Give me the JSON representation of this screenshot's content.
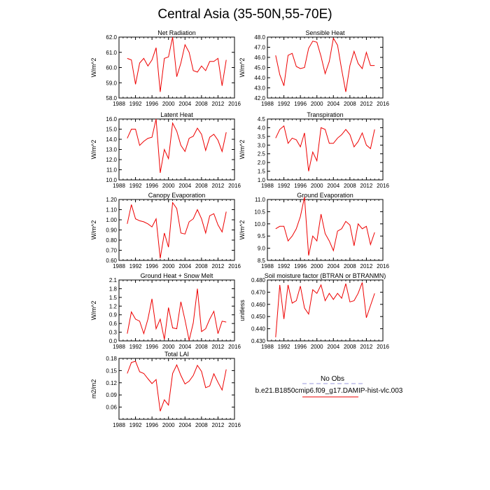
{
  "figure": {
    "title": "Central Asia (35-50N,55-70E)"
  },
  "legend": {
    "obs_label": "No Obs",
    "model_label": "b.e21.B1850cmip6.f09_g17.DAMIP-hist-vlc.003",
    "obs_color": "#9999dd",
    "model_color": "#ee0000"
  },
  "chart_data": [
    {
      "type": "line",
      "title": "Net Radiation",
      "ylabel": "W/m^2",
      "xlim": [
        1988,
        2016
      ],
      "ylim": [
        58.0,
        62.0
      ],
      "xticks": [
        1988,
        1992,
        1996,
        2000,
        2004,
        2008,
        2012,
        2016
      ],
      "yticks": [
        58.0,
        59.0,
        60.0,
        61.0,
        62.0
      ],
      "ytick_labels": [
        "58.0",
        "59.0",
        "60.0",
        "61.0",
        "62.0"
      ],
      "x": [
        1990,
        1991,
        1992,
        1993,
        1994,
        1995,
        1996,
        1997,
        1998,
        1999,
        2000,
        2001,
        2002,
        2003,
        2004,
        2005,
        2006,
        2007,
        2008,
        2009,
        2010,
        2011,
        2012,
        2013,
        2014
      ],
      "series": [
        {
          "values": [
            60.6,
            60.5,
            58.9,
            60.3,
            60.6,
            60.1,
            60.5,
            61.3,
            58.4,
            60.6,
            60.7,
            62.0,
            59.4,
            60.3,
            61.5,
            61.0,
            59.8,
            59.7,
            60.1,
            59.8,
            60.4,
            60.4,
            60.6,
            58.8,
            60.5
          ]
        }
      ]
    },
    {
      "type": "line",
      "title": "Sensible Heat",
      "ylabel": "W/m^2",
      "xlim": [
        1988,
        2016
      ],
      "ylim": [
        42.0,
        48.0
      ],
      "xticks": [
        1988,
        1992,
        1996,
        2000,
        2004,
        2008,
        2012,
        2016
      ],
      "yticks": [
        42.0,
        43.0,
        44.0,
        45.0,
        46.0,
        47.0,
        48.0
      ],
      "ytick_labels": [
        "42.0",
        "43.0",
        "44.0",
        "45.0",
        "46.0",
        "47.0",
        "48.0"
      ],
      "x": [
        1990,
        1991,
        1992,
        1993,
        1994,
        1995,
        1996,
        1997,
        1998,
        1999,
        2000,
        2001,
        2002,
        2003,
        2004,
        2005,
        2006,
        2007,
        2008,
        2009,
        2010,
        2011,
        2012,
        2013,
        2014
      ],
      "series": [
        {
          "values": [
            46.2,
            44.3,
            43.2,
            46.2,
            46.4,
            45.1,
            44.9,
            45.0,
            46.9,
            47.6,
            47.5,
            46.1,
            44.4,
            45.6,
            47.9,
            47.2,
            44.8,
            42.6,
            45.2,
            46.6,
            45.4,
            44.9,
            46.5,
            45.2,
            45.2
          ]
        }
      ]
    },
    {
      "type": "line",
      "title": "Latent Heat",
      "ylabel": "W/m^2",
      "xlim": [
        1988,
        2016
      ],
      "ylim": [
        10.0,
        16.0
      ],
      "xticks": [
        1988,
        1992,
        1996,
        2000,
        2004,
        2008,
        2012,
        2016
      ],
      "yticks": [
        10.0,
        11.0,
        12.0,
        13.0,
        14.0,
        15.0,
        16.0
      ],
      "ytick_labels": [
        "10.0",
        "11.0",
        "12.0",
        "13.0",
        "14.0",
        "15.0",
        "16.0"
      ],
      "x": [
        1990,
        1991,
        1992,
        1993,
        1994,
        1995,
        1996,
        1997,
        1998,
        1999,
        2000,
        2001,
        2002,
        2003,
        2004,
        2005,
        2006,
        2007,
        2008,
        2009,
        2010,
        2011,
        2012,
        2013,
        2014
      ],
      "series": [
        {
          "values": [
            14.1,
            15.0,
            15.0,
            13.4,
            13.8,
            14.1,
            14.2,
            16.0,
            10.7,
            13.0,
            12.1,
            15.6,
            14.8,
            13.4,
            12.8,
            14.1,
            14.3,
            15.1,
            14.5,
            12.9,
            14.2,
            14.5,
            13.9,
            12.8,
            14.7
          ]
        }
      ]
    },
    {
      "type": "line",
      "title": "Transpiration",
      "ylabel": "W/m^2",
      "xlim": [
        1988,
        2016
      ],
      "ylim": [
        1.0,
        4.5
      ],
      "xticks": [
        1988,
        1992,
        1996,
        2000,
        2004,
        2008,
        2012,
        2016
      ],
      "yticks": [
        1.0,
        1.5,
        2.0,
        2.5,
        3.0,
        3.5,
        4.0,
        4.5
      ],
      "ytick_labels": [
        "1.0",
        "1.5",
        "2.0",
        "2.5",
        "3.0",
        "3.5",
        "4.0",
        "4.5"
      ],
      "x": [
        1990,
        1991,
        1992,
        1993,
        1994,
        1995,
        1996,
        1997,
        1998,
        1999,
        2000,
        2001,
        2002,
        2003,
        2004,
        2005,
        2006,
        2007,
        2008,
        2009,
        2010,
        2011,
        2012,
        2013,
        2014
      ],
      "series": [
        {
          "values": [
            3.4,
            3.9,
            4.1,
            3.1,
            3.4,
            3.3,
            2.9,
            3.7,
            1.5,
            2.6,
            2.1,
            4.0,
            3.9,
            3.1,
            3.1,
            3.4,
            3.6,
            3.9,
            3.6,
            2.9,
            3.2,
            3.7,
            3.0,
            2.8,
            3.9
          ]
        }
      ]
    },
    {
      "type": "line",
      "title": "Canopy Evaporation",
      "ylabel": "W/m^2",
      "xlim": [
        1988,
        2016
      ],
      "ylim": [
        0.6,
        1.2
      ],
      "xticks": [
        1988,
        1992,
        1996,
        2000,
        2004,
        2008,
        2012,
        2016
      ],
      "yticks": [
        0.6,
        0.7,
        0.8,
        0.9,
        1.0,
        1.1,
        1.2
      ],
      "ytick_labels": [
        "0.60",
        "0.70",
        "0.80",
        "0.90",
        "1.00",
        "1.10",
        "1.20"
      ],
      "x": [
        1990,
        1991,
        1992,
        1993,
        1994,
        1995,
        1996,
        1997,
        1998,
        1999,
        2000,
        2001,
        2002,
        2003,
        2004,
        2005,
        2006,
        2007,
        2008,
        2009,
        2010,
        2011,
        2012,
        2013,
        2014
      ],
      "series": [
        {
          "values": [
            0.96,
            1.15,
            1.01,
            0.99,
            0.98,
            0.96,
            0.93,
            1.01,
            0.62,
            0.87,
            0.73,
            1.17,
            1.11,
            0.87,
            0.86,
            0.98,
            1.01,
            1.1,
            1.01,
            0.87,
            1.04,
            1.06,
            0.95,
            0.88,
            1.08
          ]
        }
      ]
    },
    {
      "type": "line",
      "title": "Ground Evaporation",
      "ylabel": "W/m^2",
      "xlim": [
        1988,
        2016
      ],
      "ylim": [
        8.5,
        11.0
      ],
      "xticks": [
        1988,
        1992,
        1996,
        2000,
        2004,
        2008,
        2012,
        2016
      ],
      "yticks": [
        8.5,
        9.0,
        9.5,
        10.0,
        10.5,
        11.0
      ],
      "ytick_labels": [
        "8.5",
        "9.0",
        "9.5",
        "10.0",
        "10.5",
        "11.0"
      ],
      "x": [
        1990,
        1991,
        1992,
        1993,
        1994,
        1995,
        1996,
        1997,
        1998,
        1999,
        2000,
        2001,
        2002,
        2003,
        2004,
        2005,
        2006,
        2007,
        2008,
        2009,
        2010,
        2011,
        2012,
        2013,
        2014
      ],
      "series": [
        {
          "values": [
            9.8,
            9.9,
            9.9,
            9.3,
            9.5,
            9.8,
            10.3,
            11.1,
            8.7,
            9.5,
            9.3,
            10.4,
            9.6,
            9.3,
            8.9,
            9.7,
            9.8,
            10.1,
            9.95,
            9.1,
            10.0,
            9.8,
            9.9,
            9.15,
            9.65
          ]
        }
      ]
    },
    {
      "type": "line",
      "title": "Ground Heat + Snow Melt",
      "ylabel": "W/m^2",
      "xlim": [
        1988,
        2016
      ],
      "ylim": [
        0.0,
        2.1
      ],
      "xticks": [
        1988,
        1992,
        1996,
        2000,
        2004,
        2008,
        2012,
        2016
      ],
      "yticks": [
        0.0,
        0.3,
        0.6,
        0.9,
        1.2,
        1.5,
        1.8,
        2.1
      ],
      "ytick_labels": [
        "0.0",
        "0.3",
        "0.6",
        "0.9",
        "1.2",
        "1.5",
        "1.8",
        "2.1"
      ],
      "x": [
        1990,
        1991,
        1992,
        1993,
        1994,
        1995,
        1996,
        1997,
        1998,
        1999,
        2000,
        2001,
        2002,
        2003,
        2004,
        2005,
        2006,
        2007,
        2008,
        2009,
        2010,
        2011,
        2012,
        2013,
        2014
      ],
      "series": [
        {
          "values": [
            0.25,
            1.0,
            0.75,
            0.68,
            0.25,
            0.75,
            1.45,
            0.42,
            0.75,
            0.05,
            1.15,
            0.45,
            0.42,
            1.35,
            0.72,
            0.02,
            0.62,
            1.8,
            0.32,
            0.42,
            0.75,
            1.02,
            0.25,
            0.68,
            0.65
          ]
        }
      ]
    },
    {
      "type": "line",
      "title": "Soil moisture factor (BTRAN or BTRANMN)",
      "ylabel": "unitless",
      "xlim": [
        1988,
        2016
      ],
      "ylim": [
        0.43,
        0.48
      ],
      "xticks": [
        1988,
        1992,
        1996,
        2000,
        2004,
        2008,
        2012,
        2016
      ],
      "yticks": [
        0.43,
        0.44,
        0.45,
        0.46,
        0.47,
        0.48
      ],
      "ytick_labels": [
        "0.430",
        "0.440",
        "0.450",
        "0.460",
        "0.470",
        "0.480"
      ],
      "x": [
        1990,
        1991,
        1992,
        1993,
        1994,
        1995,
        1996,
        1997,
        1998,
        1999,
        2000,
        2001,
        2002,
        2003,
        2004,
        2005,
        2006,
        2007,
        2008,
        2009,
        2010,
        2011,
        2012,
        2013,
        2014
      ],
      "series": [
        {
          "values": [
            0.433,
            0.476,
            0.448,
            0.476,
            0.461,
            0.463,
            0.475,
            0.457,
            0.452,
            0.472,
            0.469,
            0.476,
            0.463,
            0.469,
            0.464,
            0.469,
            0.465,
            0.477,
            0.462,
            0.463,
            0.469,
            0.478,
            0.449,
            0.459,
            0.469
          ]
        }
      ]
    },
    {
      "type": "line",
      "title": "Total LAI",
      "ylabel": "m2/m2",
      "xlim": [
        1988,
        2016
      ],
      "ylim": [
        0.03,
        0.18
      ],
      "xticks": [
        1988,
        1992,
        1996,
        2000,
        2004,
        2008,
        2012,
        2016
      ],
      "yticks": [
        0.06,
        0.09,
        0.12,
        0.15,
        0.18
      ],
      "ytick_labels": [
        "0.06",
        "0.09",
        "0.12",
        "0.15",
        "0.18"
      ],
      "x": [
        1990,
        1991,
        1992,
        1993,
        1994,
        1995,
        1996,
        1997,
        1998,
        1999,
        2000,
        2001,
        2002,
        2003,
        2004,
        2005,
        2006,
        2007,
        2008,
        2009,
        2010,
        2011,
        2012,
        2013,
        2014
      ],
      "series": [
        {
          "values": [
            0.143,
            0.17,
            0.173,
            0.147,
            0.143,
            0.13,
            0.118,
            0.128,
            0.05,
            0.078,
            0.065,
            0.143,
            0.164,
            0.138,
            0.117,
            0.124,
            0.138,
            0.163,
            0.148,
            0.108,
            0.112,
            0.142,
            0.121,
            0.102,
            0.153
          ]
        }
      ]
    }
  ]
}
